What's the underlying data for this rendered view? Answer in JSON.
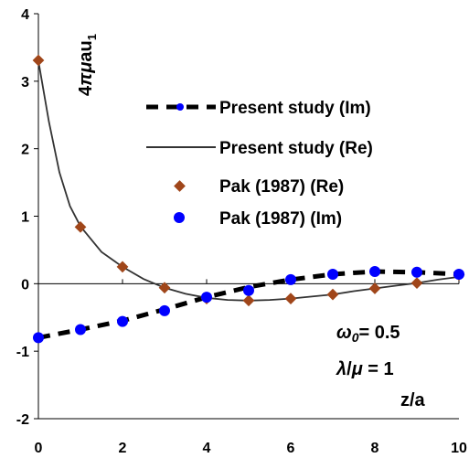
{
  "chart_data": {
    "type": "line",
    "x_range": [
      0,
      10
    ],
    "y_range": [
      -2,
      4
    ],
    "x_ticks": [
      "0",
      "2",
      "4",
      "6",
      "8",
      "10"
    ],
    "y_ticks": [
      "-2",
      "-1",
      "0",
      "1",
      "2",
      "3",
      "4"
    ],
    "grid": false,
    "legend_position": "top-right",
    "ylabel": {
      "prefix": "4",
      "pi": "π",
      "mu": "μ",
      "a": "a",
      "u": "u",
      "sub": "1"
    },
    "xlabel": "z/a",
    "annotations": [
      {
        "symbol": "ω",
        "sub": "0",
        "rest": "= 0.5"
      },
      {
        "symbol": "λ",
        "slash": "/",
        "mu": "μ",
        "rest": " = 1"
      }
    ],
    "series": [
      {
        "name": "Present study (Im)",
        "style": "dashed",
        "color": "#000000",
        "x": [
          0,
          1,
          2,
          3,
          4,
          5,
          6,
          7,
          8,
          9,
          10
        ],
        "y": [
          -0.8,
          -0.68,
          -0.55,
          -0.38,
          -0.2,
          -0.05,
          0.06,
          0.14,
          0.18,
          0.17,
          0.14
        ]
      },
      {
        "name": "Present study (Re)",
        "style": "solid",
        "color": "#333333",
        "x": [
          0,
          0.25,
          0.5,
          0.75,
          1,
          1.5,
          2,
          2.5,
          3,
          3.5,
          4,
          4.5,
          5,
          5.5,
          6,
          6.5,
          7,
          7.5,
          8,
          8.5,
          9,
          9.5,
          10
        ],
        "y": [
          3.3,
          2.4,
          1.65,
          1.15,
          0.85,
          0.47,
          0.25,
          0.07,
          -0.06,
          -0.15,
          -0.21,
          -0.24,
          -0.25,
          -0.24,
          -0.22,
          -0.19,
          -0.16,
          -0.11,
          -0.07,
          -0.03,
          0.01,
          0.06,
          0.1
        ]
      },
      {
        "name": "Pak (1987) (Re)",
        "style": "diamond",
        "color": "#A0461A",
        "x": [
          0,
          1,
          2,
          3,
          4,
          5,
          6,
          7,
          8,
          9,
          10
        ],
        "y": [
          3.31,
          0.84,
          0.25,
          -0.06,
          -0.22,
          -0.25,
          -0.22,
          -0.16,
          -0.07,
          0.01,
          0.13
        ]
      },
      {
        "name": "Pak (1987) (Im)",
        "style": "circle",
        "color": "#0000FF",
        "x": [
          0,
          1,
          2,
          3,
          4,
          5,
          6,
          7,
          8,
          9,
          10
        ],
        "y": [
          -0.8,
          -0.68,
          -0.56,
          -0.4,
          -0.2,
          -0.1,
          0.06,
          0.14,
          0.18,
          0.17,
          0.14
        ]
      }
    ]
  }
}
